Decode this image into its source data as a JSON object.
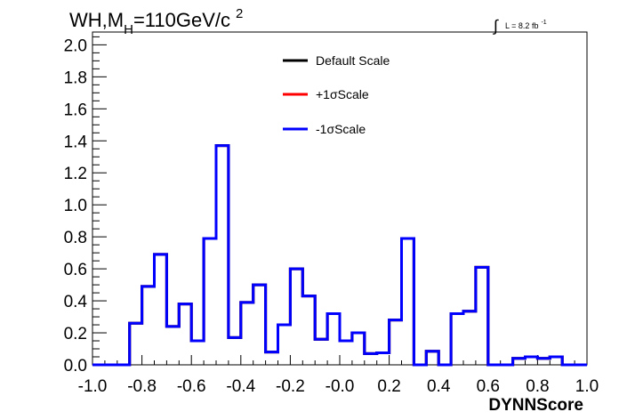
{
  "chart_data": {
    "type": "histogram",
    "title_main": "WH,M",
    "title_sub": "H",
    "title_rest": "=110GeV/c",
    "title_sup": "2",
    "lumi_integral": "∫",
    "lumi_text": "L = 8.2 fb",
    "lumi_sup": "-1",
    "xlabel": "DYNNScore",
    "ylabel": "",
    "xlim": [
      -1.0,
      1.0
    ],
    "ylim": [
      0.0,
      2.08
    ],
    "x_ticks": [
      "-1.0",
      "-0.8",
      "-0.6",
      "-0.4",
      "-0.2",
      "-0.0",
      "0.2",
      "0.4",
      "0.6",
      "0.8",
      "1.0"
    ],
    "y_ticks": [
      "0.0",
      "0.2",
      "0.4",
      "0.6",
      "0.8",
      "1.0",
      "1.2",
      "1.4",
      "1.6",
      "1.8",
      "2.0"
    ],
    "bin_edges": [
      -1.0,
      -0.95,
      -0.9,
      -0.85,
      -0.8,
      -0.75,
      -0.7,
      -0.65,
      -0.6,
      -0.55,
      -0.5,
      -0.45,
      -0.4,
      -0.35,
      -0.3,
      -0.25,
      -0.2,
      -0.15,
      -0.1,
      -0.05,
      0.0,
      0.05,
      0.1,
      0.15,
      0.2,
      0.25,
      0.3,
      0.35,
      0.4,
      0.45,
      0.5,
      0.55,
      0.6,
      0.65,
      0.7,
      0.75,
      0.8,
      0.85,
      0.9,
      0.95,
      1.0
    ],
    "series": [
      {
        "name": "Default Scale",
        "color": "#000000",
        "values": [
          0,
          0,
          0,
          0.26,
          0.49,
          0.69,
          0.24,
          0.38,
          0.15,
          0.79,
          1.37,
          0.17,
          0.39,
          0.5,
          0.08,
          0.25,
          0.6,
          0.43,
          0.16,
          0.32,
          0.15,
          0.2,
          0.07,
          0.075,
          0.28,
          0.79,
          0,
          0.085,
          0,
          0.32,
          0.335,
          0.61,
          0,
          0,
          0.04,
          0.05,
          0.04,
          0.05,
          0,
          0
        ]
      },
      {
        "name": "+1σScale",
        "color": "#ff0000",
        "values": [
          0,
          0,
          0,
          0.26,
          0.49,
          0.69,
          0.24,
          0.38,
          0.15,
          0.79,
          1.37,
          0.17,
          0.39,
          0.5,
          0.08,
          0.25,
          0.6,
          0.43,
          0.16,
          0.32,
          0.15,
          0.2,
          0.07,
          0.075,
          0.28,
          0.79,
          0,
          0.085,
          0,
          0.32,
          0.335,
          0.61,
          0,
          0,
          0.04,
          0.05,
          0.04,
          0.05,
          0,
          0
        ]
      },
      {
        "name": "-1σScale",
        "color": "#0000ff",
        "values": [
          0,
          0,
          0,
          0.26,
          0.49,
          0.69,
          0.24,
          0.38,
          0.15,
          0.79,
          1.37,
          0.17,
          0.39,
          0.5,
          0.08,
          0.25,
          0.6,
          0.43,
          0.16,
          0.32,
          0.15,
          0.2,
          0.07,
          0.075,
          0.28,
          0.79,
          0,
          0.085,
          0,
          0.32,
          0.335,
          0.61,
          0,
          0,
          0.04,
          0.05,
          0.04,
          0.05,
          0,
          0
        ]
      }
    ],
    "legend_position": "top-center"
  }
}
